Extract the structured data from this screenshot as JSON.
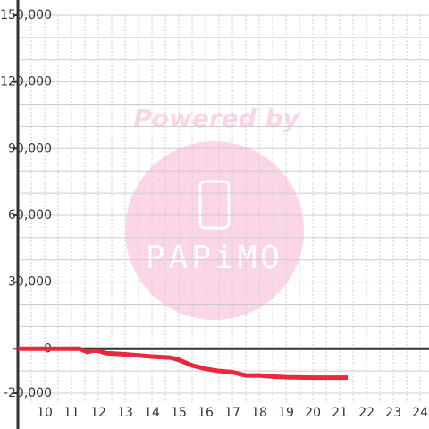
{
  "chart_data": {
    "type": "line",
    "x": [
      9,
      11.3,
      11.6,
      11.8,
      12,
      12.3,
      13,
      14,
      14.7,
      15,
      15.5,
      16,
      16.5,
      17,
      17.5,
      18,
      18.5,
      19,
      20,
      21.3
    ],
    "series": [
      {
        "color": "#e8283c",
        "values": [
          0,
          0,
          -1500,
          -800,
          -1000,
          -2000,
          -2500,
          -3500,
          -4000,
          -5000,
          -7500,
          -9000,
          -10000,
          -10500,
          -12000,
          -12000,
          -12500,
          -12800,
          -13000,
          -13000
        ]
      }
    ],
    "xlim": [
      9,
      24.33
    ],
    "xticks": [
      10,
      11,
      12,
      13,
      14,
      15,
      16,
      17,
      18,
      19,
      20,
      21,
      22,
      23,
      24
    ],
    "x_minor_ticks": [
      9.5,
      10.5,
      11.5,
      12.5,
      13.5,
      14.5,
      15.5,
      16.5,
      17.5,
      18.5,
      19.5,
      20.5,
      21.5,
      22.5,
      23.5
    ],
    "ylim": [
      -24000,
      150000
    ],
    "yticks": [
      {
        "value": -20000,
        "label": "-20,000"
      },
      0,
      {
        "value": 30000,
        "label": "30,000"
      },
      {
        "value": 60000,
        "label": "60,000"
      },
      {
        "value": 90000,
        "label": "90,000"
      },
      {
        "value": 120000,
        "label": "120,000"
      },
      {
        "value": 150000,
        "label": "150,000"
      }
    ],
    "y_minor_ticks": [
      -10000,
      10000,
      20000,
      40000,
      50000,
      70000,
      80000,
      100000,
      110000,
      130000,
      140000
    ],
    "grid": true,
    "watermark": {
      "line1": "Powered by",
      "line2": "PAPiMO"
    }
  }
}
